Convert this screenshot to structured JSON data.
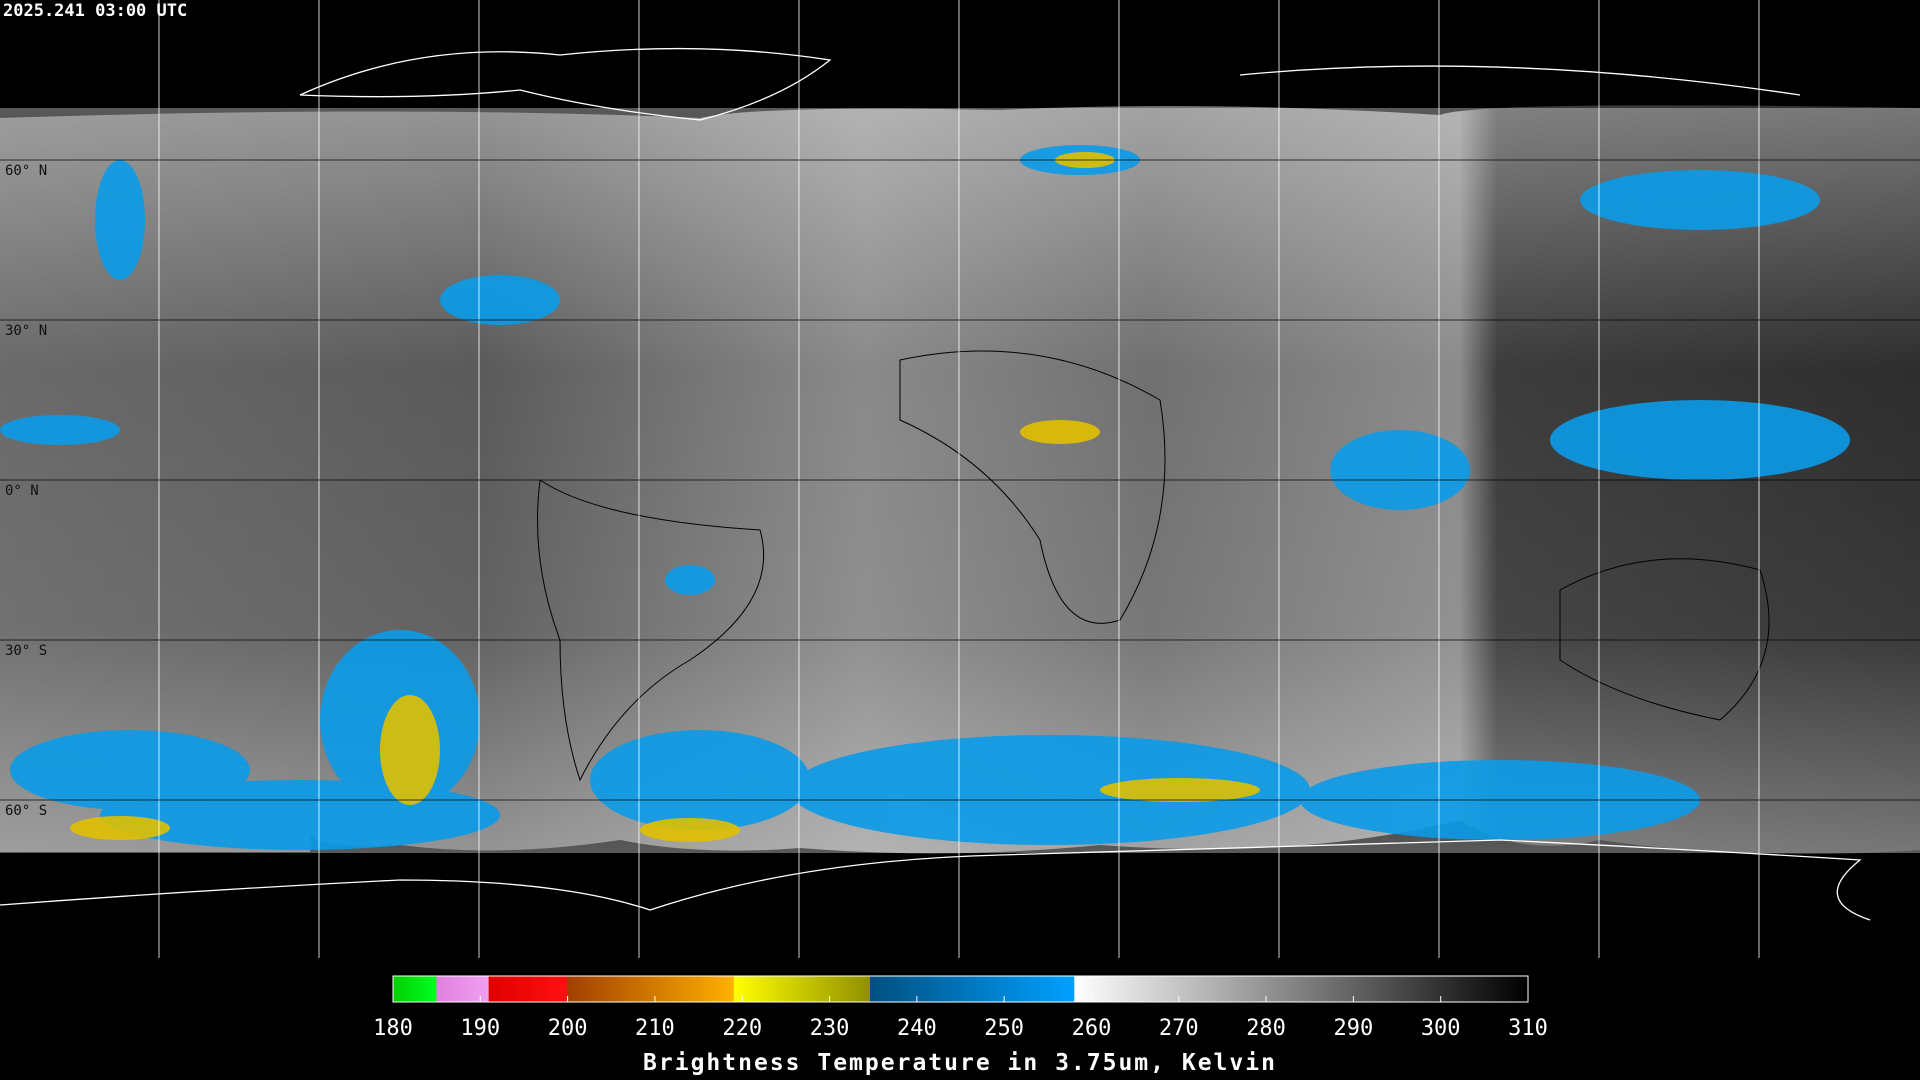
{
  "header": {
    "timestamp": "2025.241 03:00 UTC"
  },
  "map": {
    "latitude_labels": [
      "60° N",
      "30° N",
      "0° N",
      "30° S",
      "60° S"
    ]
  },
  "colorbar": {
    "range": [
      180,
      310
    ],
    "ticks": [
      180,
      190,
      200,
      210,
      220,
      230,
      240,
      250,
      260,
      270,
      280,
      290,
      300,
      310
    ],
    "title": "Brightness Temperature in 3.75um, Kelvin"
  }
}
